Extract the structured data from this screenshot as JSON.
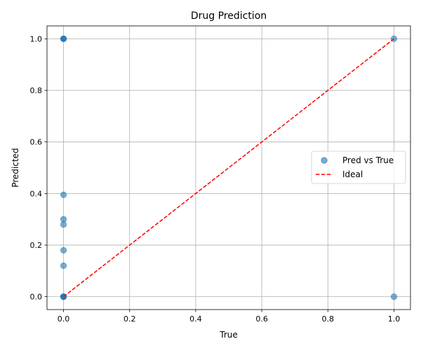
{
  "chart_data": {
    "type": "scatter",
    "title": "Drug Prediction",
    "xlabel": "True",
    "ylabel": "Predicted",
    "xlim": [
      -0.05,
      1.05
    ],
    "ylim": [
      -0.05,
      1.05
    ],
    "xticks": [
      0.0,
      0.2,
      0.4,
      0.6,
      0.8,
      1.0
    ],
    "yticks": [
      0.0,
      0.2,
      0.4,
      0.6,
      0.8,
      1.0
    ],
    "xtick_labels": [
      "0.0",
      "0.2",
      "0.4",
      "0.6",
      "0.8",
      "1.0"
    ],
    "ytick_labels": [
      "0.0",
      "0.2",
      "0.4",
      "0.6",
      "0.8",
      "1.0"
    ],
    "grid": true,
    "legend_position": "center-right",
    "series": [
      {
        "name": "Pred vs True",
        "kind": "scatter",
        "color": "#1f77b4",
        "points": [
          {
            "x": 0,
            "y": 1.0
          },
          {
            "x": 0,
            "y": 1.0
          },
          {
            "x": 0,
            "y": 1.0
          },
          {
            "x": 0,
            "y": 0.395
          },
          {
            "x": 0,
            "y": 0.3
          },
          {
            "x": 0,
            "y": 0.28
          },
          {
            "x": 0,
            "y": 0.18
          },
          {
            "x": 0,
            "y": 0.12
          },
          {
            "x": 0,
            "y": 0.0
          },
          {
            "x": 0,
            "y": 0.0
          },
          {
            "x": 0,
            "y": 0.0
          },
          {
            "x": 0,
            "y": 0.0
          },
          {
            "x": 1,
            "y": 1.0
          },
          {
            "x": 1,
            "y": 0.0
          }
        ]
      },
      {
        "name": "Ideal",
        "kind": "line",
        "style": "dashed",
        "color": "#ff0000",
        "points": [
          {
            "x": 0,
            "y": 0
          },
          {
            "x": 1,
            "y": 1
          }
        ]
      }
    ]
  }
}
